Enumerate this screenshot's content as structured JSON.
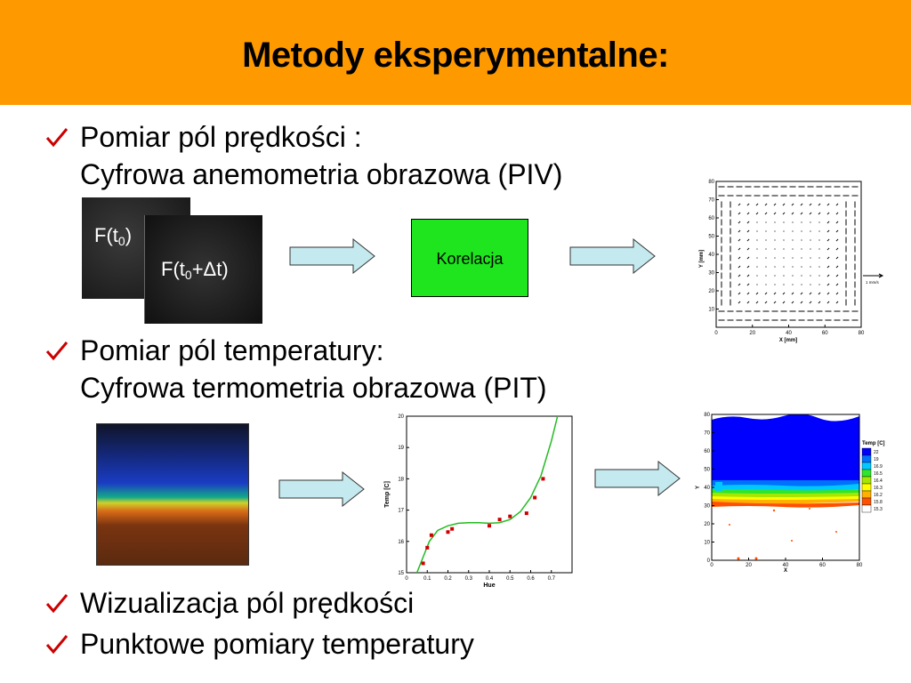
{
  "slide": {
    "title": "Metody eksperymentalne:",
    "bullets": [
      {
        "line1": "Pomiar pól prędkości :",
        "line2": "Cyfrowa anemometria obrazowa (PIV)"
      },
      {
        "line1": "Pomiar pól temperatury:",
        "line2": "Cyfrowa termometria obrazowa (PIT)"
      },
      {
        "line1": "Wizualizacja pól prędkości"
      },
      {
        "line1": "Punktowe pomiary temperatury"
      }
    ],
    "colors": {
      "header": "#ff9900",
      "check": "#cc0000",
      "box": "#1ee51e",
      "arrow": "#c4e9ee"
    }
  },
  "piv": {
    "frame1_label": "F(t",
    "frame1_sub": "0",
    "frame1_end": ")",
    "frame2_label": "F(t",
    "frame2_sub": "0",
    "frame2_plus": "+Δt)",
    "box_label": "Korelacja",
    "chart": {
      "xlabel": "X [mm]",
      "ylabel": "Y [mm]",
      "ref_vector": "1 mm/s",
      "xticks": [
        "0",
        "20",
        "40",
        "60",
        "80"
      ],
      "yticks": [
        "10",
        "20",
        "30",
        "40",
        "50",
        "60",
        "70",
        "80"
      ]
    }
  },
  "chart_data": [
    {
      "type": "scatter",
      "title": "",
      "xlabel": "Hue",
      "ylabel": "Temp [C]",
      "xlim": [
        0,
        0.8
      ],
      "ylim": [
        15,
        20
      ],
      "xticks": [
        "0",
        "0.1",
        "0.2",
        "0.3",
        "0.4",
        "0.5",
        "0.6",
        "0.7"
      ],
      "yticks": [
        "15",
        "16",
        "17",
        "18",
        "19",
        "20"
      ],
      "series": [
        {
          "values_x": [
            0.08,
            0.1,
            0.12,
            0.2,
            0.22,
            0.4,
            0.45,
            0.5,
            0.58,
            0.62,
            0.66
          ],
          "values_y": [
            15.3,
            15.8,
            16.2,
            16.3,
            16.4,
            16.5,
            16.7,
            16.8,
            16.9,
            17.4,
            18.0
          ],
          "color": "#cc0000"
        }
      ],
      "fit_curve": {
        "x": [
          0.05,
          0.08,
          0.11,
          0.15,
          0.2,
          0.25,
          0.3,
          0.35,
          0.4,
          0.45,
          0.5,
          0.55,
          0.6,
          0.65,
          0.7,
          0.73
        ],
        "y": [
          15.0,
          15.5,
          16.0,
          16.35,
          16.5,
          16.58,
          16.6,
          16.6,
          16.58,
          16.6,
          16.7,
          16.95,
          17.4,
          18.1,
          19.2,
          20.0
        ],
        "color": "#22bb22"
      }
    },
    {
      "type": "heatmap",
      "title": "",
      "xlabel": "X",
      "ylabel": "Y",
      "xlim": [
        0,
        80
      ],
      "ylim": [
        0,
        80
      ],
      "xticks": [
        "0",
        "20",
        "40",
        "60",
        "80"
      ],
      "yticks": [
        "0",
        "10",
        "20",
        "30",
        "40",
        "50",
        "60",
        "70",
        "80"
      ],
      "legend_title": "Temp [C]",
      "legend": [
        {
          "label": "22",
          "color": "#0000ff"
        },
        {
          "label": "19",
          "color": "#0070ff"
        },
        {
          "label": "16.9",
          "color": "#00c8ff"
        },
        {
          "label": "16.5",
          "color": "#2ee62e"
        },
        {
          "label": "16.4",
          "color": "#a6e600"
        },
        {
          "label": "16.3",
          "color": "#ffff00"
        },
        {
          "label": "16.2",
          "color": "#ffb000"
        },
        {
          "label": "15.8",
          "color": "#ff5000"
        },
        {
          "label": "15.3",
          "color": "#ffffff"
        }
      ]
    }
  ]
}
